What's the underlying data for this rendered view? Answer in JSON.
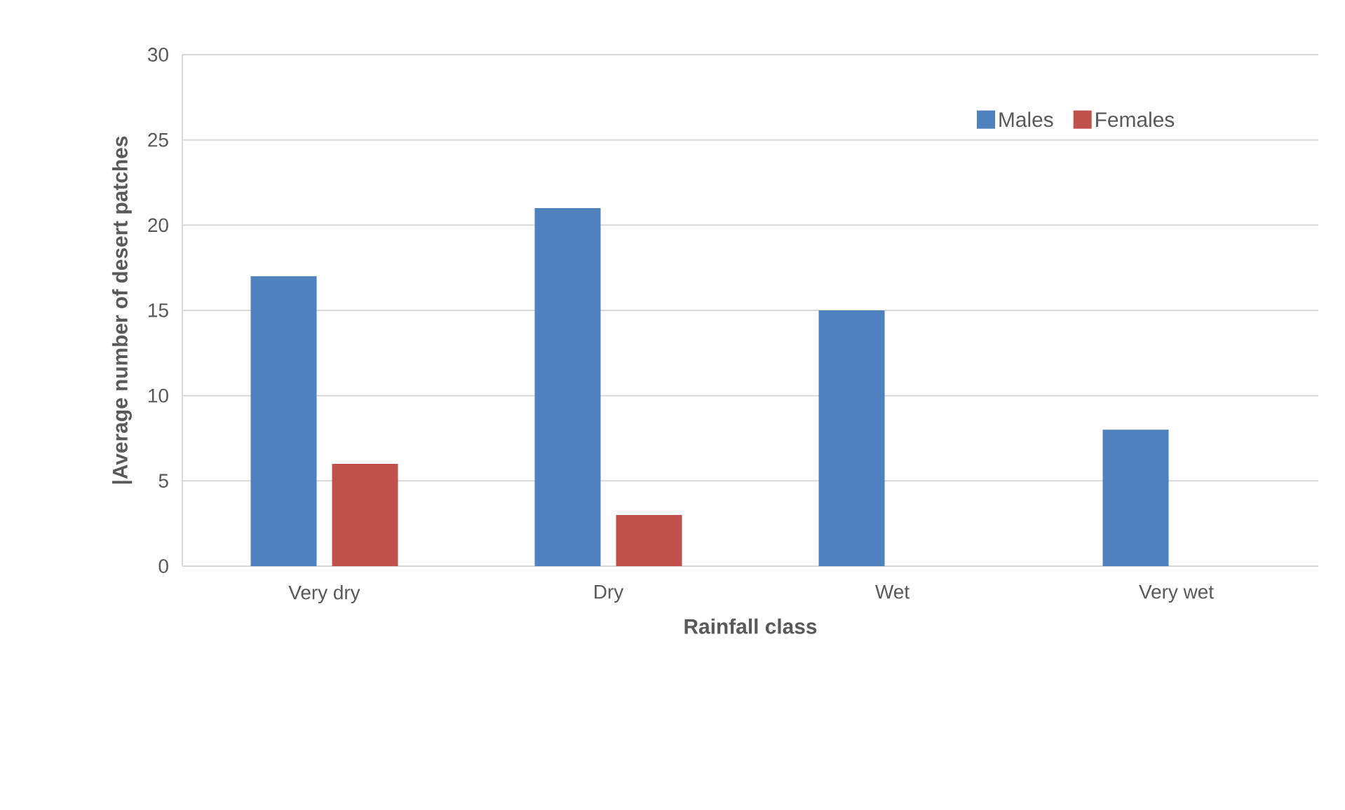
{
  "chart_data": {
    "type": "bar",
    "categories": [
      "Very dry",
      "Dry",
      "Wet",
      "Very wet"
    ],
    "series": [
      {
        "name": "Males",
        "color": "#4f81bd",
        "values": [
          17,
          21,
          15,
          8
        ]
      },
      {
        "name": "Females",
        "color": "#c0504d",
        "values": [
          6,
          3,
          0,
          0
        ]
      }
    ],
    "xlabel": "Rainfall class",
    "ylabel": "|Average number of desert patches",
    "ylim": [
      0,
      30
    ],
    "yticks": [
      0,
      5,
      10,
      15,
      20,
      25,
      30
    ],
    "grid": "y",
    "legend": "top right"
  }
}
